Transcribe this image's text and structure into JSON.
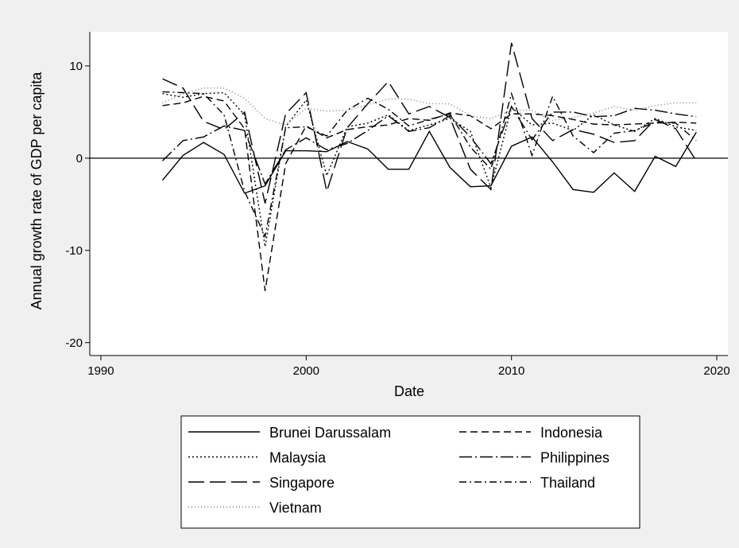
{
  "chart_data": {
    "type": "line",
    "y_label": "Annual growth rate of GDP per capita",
    "x_label": "Date",
    "x": [
      1993,
      1994,
      1995,
      1996,
      1997,
      1998,
      1999,
      2000,
      2001,
      2002,
      2003,
      2004,
      2005,
      2006,
      2007,
      2008,
      2009,
      2010,
      2011,
      2012,
      2013,
      2014,
      2015,
      2016,
      2017,
      2018,
      2019
    ],
    "series": [
      {
        "name": "Brunei Darussalam",
        "color": "#000000",
        "dash": "solid",
        "values": [
          -2.4,
          0.3,
          1.7,
          0.4,
          -3.8,
          -3.0,
          0.8,
          0.8,
          0.7,
          1.8,
          1.0,
          -1.2,
          -1.2,
          2.9,
          -1.0,
          -3.1,
          -3.0,
          1.3,
          2.3,
          -0.4,
          -3.4,
          -3.7,
          -1.6,
          -3.6,
          0.2,
          -0.9,
          2.8
        ]
      },
      {
        "name": "Indonesia",
        "color": "#000000",
        "dash": "dash",
        "values": [
          5.7,
          6.0,
          6.7,
          6.2,
          3.2,
          -14.4,
          -0.6,
          3.5,
          2.2,
          3.1,
          3.4,
          3.6,
          4.3,
          4.1,
          4.9,
          4.6,
          3.2,
          4.8,
          4.8,
          4.6,
          4.2,
          3.7,
          3.6,
          3.7,
          3.8,
          3.9,
          3.8
        ]
      },
      {
        "name": "Malaysia",
        "color": "#000000",
        "dash": "dot",
        "values": [
          7.0,
          6.6,
          7.0,
          7.1,
          4.7,
          -9.6,
          3.4,
          6.3,
          -1.9,
          3.4,
          3.8,
          4.7,
          3.0,
          3.6,
          4.3,
          2.9,
          -3.2,
          5.5,
          3.6,
          3.8,
          3.0,
          4.7,
          3.6,
          2.9,
          4.3,
          3.4,
          3.0
        ]
      },
      {
        "name": "Philippines",
        "color": "#000000",
        "dash": "longdash_dot",
        "values": [
          -0.3,
          1.9,
          2.3,
          3.5,
          3.0,
          -2.8,
          0.9,
          2.2,
          0.9,
          1.6,
          3.0,
          4.6,
          2.9,
          3.3,
          4.6,
          2.3,
          -0.6,
          5.6,
          2.0,
          5.0,
          5.0,
          4.5,
          4.6,
          5.4,
          5.2,
          4.8,
          4.5
        ]
      },
      {
        "name": "Singapore",
        "color": "#000000",
        "dash": "longdash",
        "values": [
          8.6,
          7.6,
          4.0,
          3.1,
          5.0,
          -4.9,
          4.8,
          7.1,
          -3.6,
          3.3,
          5.9,
          8.3,
          4.8,
          5.6,
          4.4,
          -1.2,
          -3.4,
          12.5,
          4.3,
          1.9,
          3.1,
          2.6,
          1.7,
          1.9,
          4.2,
          3.2,
          -0.3
        ]
      },
      {
        "name": "Thailand",
        "color": "#000000",
        "dash": "dash_dot",
        "values": [
          7.2,
          7.1,
          7.0,
          4.7,
          -3.6,
          -8.5,
          3.3,
          3.4,
          2.4,
          5.2,
          6.5,
          5.3,
          3.5,
          4.2,
          4.8,
          1.2,
          -1.2,
          7.0,
          0.3,
          6.7,
          2.4,
          0.6,
          2.7,
          3.0,
          3.9,
          3.8,
          1.9
        ]
      },
      {
        "name": "Vietnam",
        "color": "#777777",
        "dash": "shortdot",
        "values": [
          6.0,
          7.0,
          7.6,
          7.6,
          6.5,
          4.3,
          3.6,
          5.4,
          5.1,
          5.2,
          5.8,
          6.4,
          6.4,
          5.9,
          5.9,
          4.6,
          4.3,
          5.2,
          5.2,
          4.1,
          4.4,
          4.9,
          5.6,
          5.2,
          5.7,
          6.0,
          6.0
        ]
      }
    ],
    "xlim": [
      1989.46,
      2020.54
    ],
    "xticks": [
      1990,
      2000,
      2010,
      2020
    ],
    "ylim": [
      -21.4,
      13.7
    ],
    "yticks": [
      -20,
      -10,
      0,
      10
    ],
    "yline": 0,
    "grid": false
  }
}
